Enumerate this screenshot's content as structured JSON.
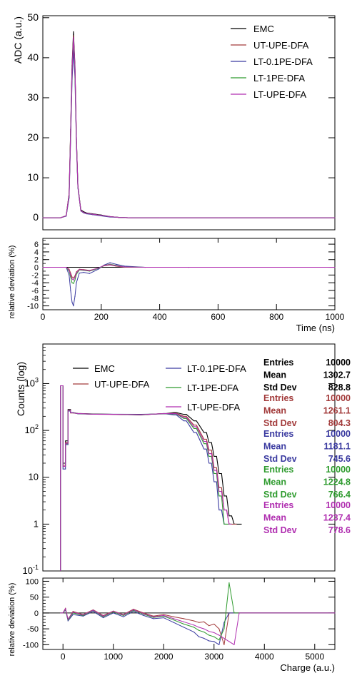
{
  "chart_data": [
    {
      "type": "line",
      "panel": "waveform",
      "ylabel": "ADC (a.u.)",
      "xlim": [
        0,
        1000
      ],
      "ylim": [
        -3,
        50.5
      ],
      "yticks": [
        0,
        10,
        20,
        30,
        40,
        50
      ],
      "legend_position": "top-right",
      "series": [
        {
          "name": "EMC",
          "color": "#000000",
          "x": [
            0,
            60,
            80,
            90,
            95,
            100,
            105,
            110,
            115,
            120,
            130,
            140,
            150,
            170,
            200,
            230,
            260,
            300,
            400,
            600,
            800,
            1000
          ],
          "y": [
            0,
            0,
            0.5,
            6,
            22,
            38,
            46.5,
            38,
            20,
            8,
            2,
            1.5,
            1.2,
            1,
            0.7,
            0.3,
            0.1,
            0,
            0,
            0,
            0,
            0
          ]
        },
        {
          "name": "UT-UPE-DFA",
          "color": "#a23a3a",
          "x": [
            0,
            60,
            80,
            90,
            95,
            100,
            105,
            110,
            115,
            120,
            130,
            140,
            150,
            170,
            200,
            230,
            260,
            300,
            400,
            600,
            800,
            1000
          ],
          "y": [
            0,
            0,
            0.5,
            6,
            21.5,
            37,
            45.5,
            37.5,
            19.5,
            7.8,
            1.8,
            1.3,
            1.1,
            0.9,
            0.6,
            0.3,
            0.1,
            0,
            0,
            0,
            0,
            0
          ]
        },
        {
          "name": "LT-0.1PE-DFA",
          "color": "#3a3aa0",
          "x": [
            0,
            60,
            80,
            90,
            95,
            100,
            105,
            110,
            115,
            120,
            130,
            140,
            150,
            170,
            200,
            230,
            260,
            300,
            400,
            600,
            800,
            1000
          ],
          "y": [
            0,
            0,
            0.4,
            5,
            19.5,
            34,
            42,
            35,
            18.5,
            7.5,
            1.7,
            1.2,
            1,
            0.8,
            0.5,
            0.2,
            0.1,
            0,
            0,
            0,
            0,
            0
          ]
        },
        {
          "name": "LT-1PE-DFA",
          "color": "#2e9b2e",
          "x": [
            0,
            60,
            80,
            90,
            95,
            100,
            105,
            110,
            115,
            120,
            130,
            140,
            150,
            170,
            200,
            230,
            260,
            300,
            400,
            600,
            800,
            1000
          ],
          "y": [
            0,
            0,
            0.5,
            5.6,
            20.8,
            36,
            44.5,
            37,
            19.5,
            7.8,
            1.8,
            1.3,
            1.1,
            0.9,
            0.6,
            0.3,
            0.1,
            0,
            0,
            0,
            0,
            0
          ]
        },
        {
          "name": "LT-UPE-DFA",
          "color": "#b02eb0",
          "x": [
            0,
            60,
            80,
            90,
            95,
            100,
            105,
            110,
            115,
            120,
            130,
            140,
            150,
            170,
            200,
            230,
            260,
            300,
            400,
            600,
            800,
            1000
          ],
          "y": [
            0,
            0,
            0.5,
            5.8,
            21,
            36.5,
            45,
            37.5,
            19.8,
            7.9,
            1.8,
            1.3,
            1.1,
            0.9,
            0.6,
            0.3,
            0.1,
            0,
            0,
            0,
            0,
            0
          ]
        }
      ]
    },
    {
      "type": "line",
      "panel": "waveform-deviation",
      "xlabel": "Time (ns)",
      "ylabel": "relative deviation (%)",
      "xlim": [
        0,
        1000
      ],
      "ylim": [
        -11,
        7.5
      ],
      "xticks": [
        0,
        200,
        400,
        600,
        800,
        1000
      ],
      "yticks": [
        -10,
        -8,
        -6,
        -4,
        -2,
        0,
        2,
        4,
        6
      ],
      "series": [
        {
          "name": "UT-UPE-DFA",
          "color": "#a23a3a",
          "x": [
            0,
            80,
            90,
            95,
            100,
            105,
            110,
            115,
            125,
            140,
            160,
            190,
            210,
            230,
            250,
            280,
            350,
            500,
            1000
          ],
          "y": [
            0,
            0,
            -0.5,
            -1.5,
            -2.5,
            -2.8,
            -2.2,
            -1.2,
            -0.5,
            -0.6,
            -0.8,
            -0.2,
            0.4,
            0.6,
            0.3,
            0,
            0,
            0,
            0
          ]
        },
        {
          "name": "LT-0.1PE-DFA",
          "color": "#3a3aa0",
          "x": [
            0,
            80,
            90,
            95,
            100,
            105,
            110,
            115,
            125,
            140,
            160,
            190,
            210,
            230,
            250,
            280,
            350,
            500,
            1000
          ],
          "y": [
            0,
            0,
            -2,
            -6,
            -9,
            -10,
            -7.5,
            -4,
            -1.5,
            -1.3,
            -1.6,
            -0.5,
            0.6,
            1.2,
            0.8,
            0.3,
            0,
            0,
            0
          ]
        },
        {
          "name": "LT-1PE-DFA",
          "color": "#2e9b2e",
          "x": [
            0,
            80,
            90,
            95,
            100,
            105,
            110,
            115,
            125,
            140,
            160,
            190,
            210,
            230,
            250,
            280,
            350,
            500,
            1000
          ],
          "y": [
            0,
            0,
            -1,
            -2.5,
            -4,
            -4.2,
            -3.3,
            -1.8,
            -0.7,
            -0.8,
            -1,
            -0.3,
            0.5,
            0.8,
            0.5,
            0.1,
            0,
            0,
            0
          ]
        },
        {
          "name": "LT-UPE-DFA",
          "color": "#b02eb0",
          "x": [
            0,
            80,
            90,
            95,
            100,
            105,
            110,
            115,
            125,
            140,
            160,
            190,
            210,
            230,
            250,
            280,
            350,
            500,
            1000
          ],
          "y": [
            0,
            0,
            -0.7,
            -2,
            -3,
            -3.3,
            -2.6,
            -1.4,
            -0.6,
            -0.7,
            -0.9,
            -0.2,
            0.5,
            0.7,
            0.4,
            0.1,
            0,
            0,
            0
          ]
        }
      ]
    },
    {
      "type": "histogram",
      "panel": "charge",
      "ylabel": "Counts (log)",
      "xlim": [
        -400,
        5400
      ],
      "ylim": [
        0.1,
        7000
      ],
      "log_y": true,
      "yticks": [
        0.1,
        1,
        10,
        100,
        1000
      ],
      "ytick_labels": [
        "10^-1",
        "1",
        "10",
        "10^2",
        "10^3"
      ],
      "bin_width": 50,
      "legend_position": "top-left",
      "series": [
        {
          "name": "EMC",
          "color": "#000000",
          "stats": {
            "entries": "10000",
            "mean": "1302.7",
            "std_dev": "828.8"
          },
          "x": [
            -50,
            0,
            50,
            100,
            150,
            300,
            600,
            1000,
            1500,
            2000,
            2200,
            2400,
            2600,
            2800,
            2900,
            3000,
            3100,
            3200,
            3300,
            3400,
            3500
          ],
          "y": [
            900,
            20,
            60,
            280,
            240,
            230,
            225,
            220,
            215,
            230,
            240,
            220,
            160,
            90,
            55,
            28,
            12,
            4,
            1.5,
            1,
            1
          ]
        },
        {
          "name": "UT-UPE-DFA",
          "color": "#a23a3a",
          "stats": {
            "entries": "10000",
            "mean": "1261.1",
            "std_dev": "804.3"
          },
          "x": [
            -50,
            0,
            50,
            100,
            150,
            300,
            600,
            1000,
            1500,
            2000,
            2200,
            2400,
            2600,
            2800,
            2900,
            3000,
            3100,
            3200,
            3300,
            3400
          ],
          "y": [
            900,
            18,
            55,
            270,
            235,
            228,
            222,
            220,
            216,
            228,
            232,
            200,
            130,
            65,
            38,
            16,
            6,
            2,
            1,
            1
          ]
        },
        {
          "name": "LT-0.1PE-DFA",
          "color": "#3a3aa0",
          "stats": {
            "entries": "10000",
            "mean": "1181.1",
            "std_dev": "745.6"
          },
          "x": [
            -50,
            0,
            50,
            100,
            150,
            300,
            600,
            1000,
            1500,
            2000,
            2200,
            2400,
            2600,
            2800,
            2900,
            3000,
            3100,
            3200
          ],
          "y": [
            900,
            15,
            50,
            260,
            240,
            226,
            222,
            222,
            220,
            226,
            215,
            160,
            90,
            40,
            20,
            8,
            2,
            1
          ]
        },
        {
          "name": "LT-1PE-DFA",
          "color": "#2e9b2e",
          "stats": {
            "entries": "10000",
            "mean": "1224.8",
            "std_dev": "766.4"
          },
          "x": [
            -50,
            0,
            50,
            100,
            150,
            300,
            600,
            1000,
            1500,
            2000,
            2200,
            2400,
            2600,
            2800,
            2900,
            3000,
            3100,
            3200,
            3300
          ],
          "y": [
            900,
            17,
            52,
            265,
            238,
            227,
            222,
            221,
            218,
            227,
            225,
            180,
            110,
            52,
            28,
            12,
            4,
            1,
            1
          ]
        },
        {
          "name": "LT-UPE-DFA",
          "color": "#b02eb0",
          "stats": {
            "entries": "10000",
            "mean": "1237.4",
            "std_dev": "778.6"
          },
          "x": [
            -50,
            0,
            50,
            100,
            150,
            300,
            600,
            1000,
            1500,
            2000,
            2200,
            2400,
            2600,
            2800,
            2900,
            3000,
            3100,
            3200,
            3300
          ],
          "y": [
            900,
            17,
            53,
            268,
            237,
            228,
            222,
            220,
            217,
            228,
            228,
            190,
            120,
            58,
            32,
            14,
            5,
            2,
            1
          ]
        }
      ]
    },
    {
      "type": "line",
      "panel": "charge-deviation",
      "xlabel": "Charge (a.u.)",
      "ylabel": "relative deviation (%)",
      "xlim": [
        -400,
        5400
      ],
      "ylim": [
        -115,
        110
      ],
      "xticks": [
        0,
        1000,
        2000,
        3000,
        4000,
        5000
      ],
      "yticks": [
        -100,
        -50,
        0,
        50,
        100
      ],
      "series": [
        {
          "name": "UT-UPE-DFA",
          "color": "#a23a3a",
          "x": [
            -50,
            0,
            50,
            100,
            200,
            400,
            600,
            800,
            1000,
            1200,
            1400,
            1600,
            1800,
            2000,
            2200,
            2400,
            2600,
            2700,
            2800,
            2900,
            3000,
            3100,
            3200,
            3300,
            3400,
            5400
          ],
          "y": [
            0,
            0,
            15,
            -20,
            5,
            -5,
            10,
            -8,
            6,
            -5,
            12,
            0,
            -10,
            -5,
            -12,
            -18,
            -25,
            -30,
            -28,
            -40,
            -35,
            -50,
            -100,
            0,
            0,
            0
          ]
        },
        {
          "name": "LT-0.1PE-DFA",
          "color": "#3a3aa0",
          "x": [
            -50,
            0,
            50,
            100,
            200,
            400,
            600,
            800,
            1000,
            1200,
            1400,
            1600,
            1800,
            2000,
            2200,
            2400,
            2600,
            2700,
            2800,
            2900,
            3000,
            3100,
            3200,
            3300,
            5400
          ],
          "y": [
            0,
            0,
            10,
            -25,
            -5,
            -10,
            5,
            -15,
            0,
            -12,
            5,
            -8,
            -18,
            -15,
            -30,
            -45,
            -60,
            -75,
            -80,
            -88,
            -90,
            -100,
            -30,
            0,
            0
          ]
        },
        {
          "name": "LT-1PE-DFA",
          "color": "#2e9b2e",
          "x": [
            -50,
            0,
            50,
            100,
            200,
            400,
            600,
            800,
            1000,
            1200,
            1400,
            1600,
            1800,
            2000,
            2200,
            2400,
            2600,
            2700,
            2800,
            2900,
            3000,
            3100,
            3200,
            3300,
            3400,
            5400
          ],
          "y": [
            0,
            0,
            12,
            -22,
            0,
            -8,
            8,
            -12,
            3,
            -8,
            8,
            -4,
            -14,
            -10,
            -22,
            -35,
            -45,
            -55,
            -60,
            -70,
            -75,
            -85,
            -50,
            95,
            0,
            0
          ]
        },
        {
          "name": "LT-UPE-DFA",
          "color": "#b02eb0",
          "x": [
            -50,
            0,
            50,
            100,
            200,
            400,
            600,
            800,
            1000,
            1200,
            1400,
            1600,
            1800,
            2000,
            2200,
            2400,
            2600,
            2700,
            2800,
            2900,
            3000,
            3100,
            3200,
            3300,
            3400,
            3500,
            5400
          ],
          "y": [
            0,
            0,
            14,
            -20,
            3,
            -6,
            9,
            -10,
            5,
            -6,
            10,
            -2,
            -12,
            -8,
            -18,
            -28,
            -38,
            -45,
            -50,
            -58,
            -62,
            -70,
            -80,
            -90,
            -100,
            0,
            0
          ]
        }
      ]
    }
  ],
  "stats_box": {
    "labels": {
      "entries": "Entries",
      "mean": "Mean",
      "std_dev": "Std Dev"
    }
  }
}
